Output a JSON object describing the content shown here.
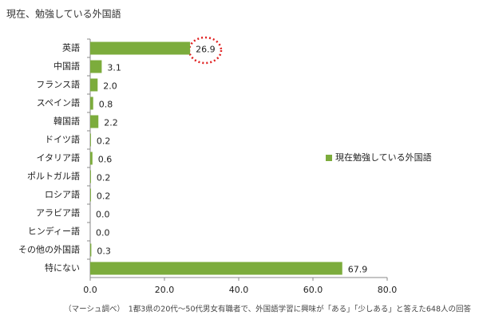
{
  "chart_data": {
    "type": "bar",
    "orientation": "horizontal",
    "title": "現在、勉強している外国語",
    "categories": [
      "英語",
      "中国語",
      "フランス語",
      "スペイン語",
      "韓国語",
      "ドイツ語",
      "イタリア語",
      "ポルトガル語",
      "ロシア語",
      "アラビア語",
      "ヒンディー語",
      "その他の外国語",
      "特にない"
    ],
    "series": [
      {
        "name": "現在勉強している外国語",
        "color": "#7cac3c",
        "values": [
          26.9,
          3.1,
          2.0,
          0.8,
          2.2,
          0.2,
          0.6,
          0.2,
          0.2,
          0.0,
          0.0,
          0.3,
          67.9
        ],
        "value_labels": [
          "26.9",
          "3.1",
          "2.0",
          "0.8",
          "2.2",
          "0.2",
          "0.6",
          "0.2",
          "0.2",
          "0.0",
          "0.0",
          "0.3",
          "67.9"
        ]
      }
    ],
    "xlim": [
      0,
      80
    ],
    "xticks": [
      {
        "value": 0,
        "label": "0.0"
      },
      {
        "value": 20,
        "label": "20.0"
      },
      {
        "value": 40,
        "label": "40.0"
      },
      {
        "value": 60,
        "label": "60.0"
      },
      {
        "value": 80,
        "label": "80.0"
      }
    ],
    "legend": "right",
    "note": "（マーシュ調べ）　1都3県の20代～50代男女有職者で、外国語学習に興味が「ある」「少しある」と答えた648人の回答"
  }
}
